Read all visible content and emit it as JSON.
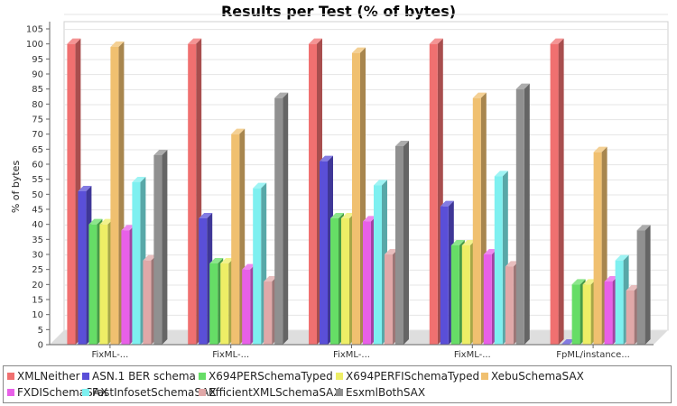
{
  "chart_data": {
    "type": "bar",
    "title": "Results per Test (% of bytes)",
    "xlabel": "",
    "ylabel": "% of bytes",
    "ylim": [
      0,
      105
    ],
    "ytick_step": 5,
    "grid": true,
    "legend_position": "bottom",
    "categories": [
      "FixML-...",
      "FixML-...",
      "FixML-...",
      "FixML-...",
      "FpML/instance..."
    ],
    "series": [
      {
        "name": "XMLNeither",
        "color": "#f07070",
        "values": [
          100,
          100,
          100,
          100,
          100
        ]
      },
      {
        "name": "ASN.1 BER schema",
        "color": "#5a4fd8",
        "values": [
          51,
          42,
          61,
          46,
          0
        ]
      },
      {
        "name": "X694PERSchemaTyped",
        "color": "#66dd66",
        "values": [
          40,
          27,
          42,
          33,
          20
        ]
      },
      {
        "name": "X694PERFISchemaTyped",
        "color": "#eeee66",
        "values": [
          40,
          27,
          42,
          33,
          20
        ]
      },
      {
        "name": "XebuSchemaSAX",
        "color": "#f0c070",
        "values": [
          99,
          70,
          97,
          82,
          64
        ]
      },
      {
        "name": "FXDISchemaSAX",
        "color": "#e860e8",
        "values": [
          38,
          25,
          41,
          30,
          21
        ]
      },
      {
        "name": "FastInfosetSchemaSAX",
        "color": "#7ef0f0",
        "values": [
          54,
          52,
          53,
          56,
          28
        ]
      },
      {
        "name": "EfficientXMLSchemaSAX",
        "color": "#e0a8a8",
        "values": [
          28,
          21,
          30,
          26,
          18
        ]
      },
      {
        "name": "EsxmlBothSAX",
        "color": "#909090",
        "values": [
          63,
          82,
          66,
          85,
          38
        ]
      }
    ]
  }
}
